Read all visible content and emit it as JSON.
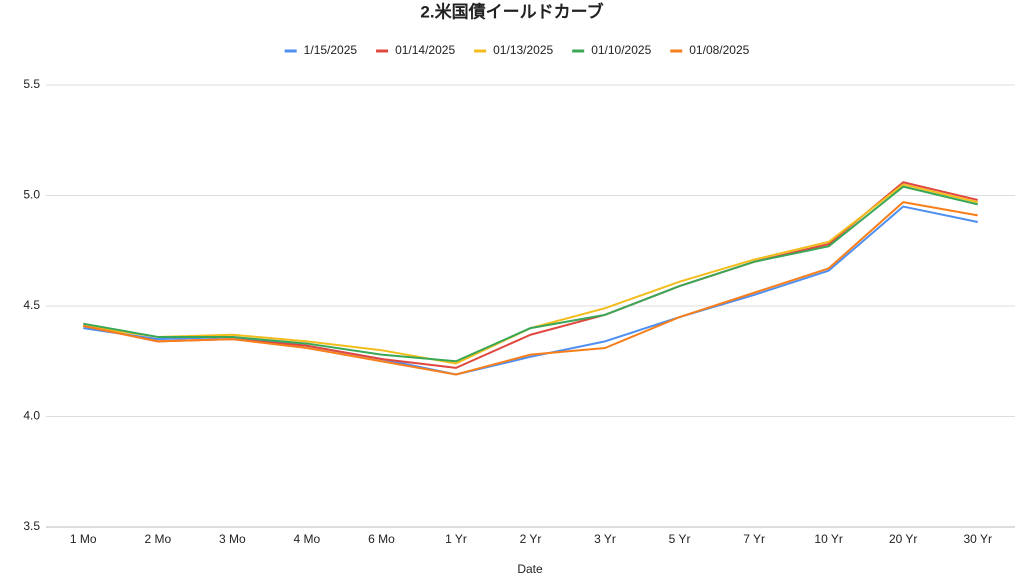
{
  "chart_data": {
    "type": "line",
    "title": "2.米国債イールドカーブ",
    "x_label": "Date",
    "categories": [
      "1 Mo",
      "2 Mo",
      "3 Mo",
      "4 Mo",
      "6 Mo",
      "1 Yr",
      "2 Yr",
      "3 Yr",
      "5 Yr",
      "7 Yr",
      "10 Yr",
      "20 Yr",
      "30 Yr"
    ],
    "series": [
      {
        "name": "1/15/2025",
        "color": "#4e8ff0",
        "values": [
          4.4,
          4.35,
          4.36,
          4.32,
          4.26,
          4.19,
          4.27,
          4.34,
          4.45,
          4.55,
          4.66,
          4.95,
          4.88
        ]
      },
      {
        "name": "01/14/2025",
        "color": "#e0473f",
        "values": [
          4.41,
          4.34,
          4.35,
          4.32,
          4.26,
          4.22,
          4.37,
          4.46,
          4.59,
          4.7,
          4.78,
          5.06,
          4.98
        ]
      },
      {
        "name": "01/13/2025",
        "color": "#f2bd1c",
        "values": [
          4.41,
          4.36,
          4.37,
          4.34,
          4.3,
          4.24,
          4.4,
          4.49,
          4.61,
          4.71,
          4.79,
          5.05,
          4.97
        ]
      },
      {
        "name": "01/10/2025",
        "color": "#3aa757",
        "values": [
          4.42,
          4.36,
          4.36,
          4.33,
          4.28,
          4.25,
          4.4,
          4.46,
          4.59,
          4.7,
          4.77,
          5.04,
          4.96
        ]
      },
      {
        "name": "01/08/2025",
        "color": "#f77f1b",
        "values": [
          4.41,
          4.34,
          4.35,
          4.31,
          4.25,
          4.19,
          4.28,
          4.31,
          4.45,
          4.56,
          4.67,
          4.97,
          4.91
        ]
      }
    ],
    "ylim": [
      3.5,
      5.5
    ],
    "yticks": [
      3.5,
      {
        "value": 4,
        "label": "4.0"
      },
      4.5,
      {
        "value": 5,
        "label": "5.0"
      },
      5.5
    ],
    "grid": true,
    "legend": "top"
  }
}
